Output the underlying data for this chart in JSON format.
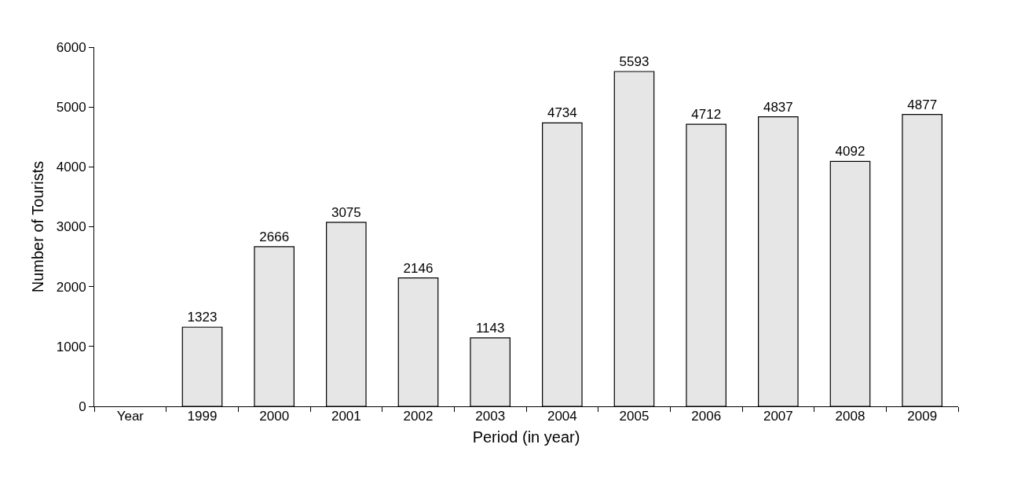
{
  "chart_data": {
    "type": "bar",
    "xlabel": "Period (in year)",
    "ylabel": "Number of Tourists",
    "categories": [
      "Year",
      "1999",
      "2000",
      "2001",
      "2002",
      "2003",
      "2004",
      "2005",
      "2006",
      "2007",
      "2008",
      "2009"
    ],
    "values": [
      null,
      1323,
      2666,
      3075,
      2146,
      1143,
      4734,
      5593,
      4712,
      4837,
      4092,
      4877
    ],
    "color": "#e6e6e6",
    "ylim": [
      0,
      6000
    ],
    "yticks": [
      0,
      1000,
      2000,
      3000,
      4000,
      5000,
      6000
    ],
    "data_labels": true
  }
}
